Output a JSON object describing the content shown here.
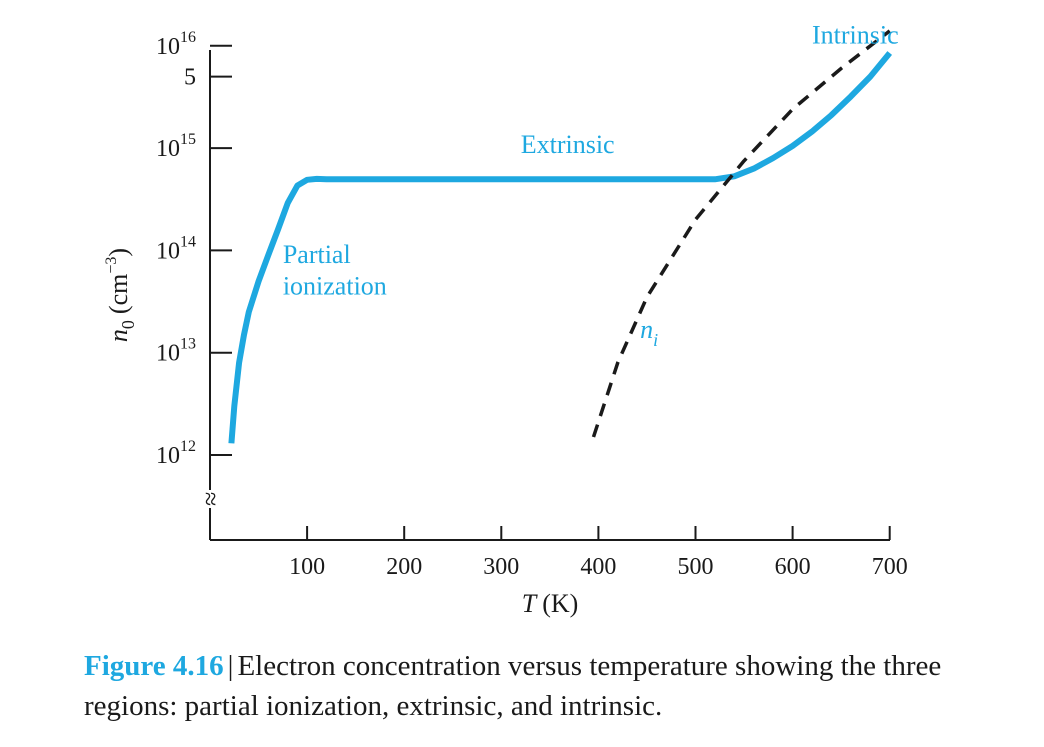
{
  "caption": {
    "figure_number": "Figure 4.16",
    "separator": "|",
    "text": "Electron concentration versus temperature showing the three regions: partial ionization, extrinsic, and intrinsic."
  },
  "colors": {
    "accent": "#1ea8e0",
    "ni_curve": "#1a1a1a",
    "axis": "#1a1a1a"
  },
  "chart_data": {
    "type": "line",
    "title": "",
    "xlabel": {
      "var": "T",
      "unit": "(K)"
    },
    "ylabel": {
      "var": "n",
      "sub": "0",
      "unit_pre": "(cm",
      "unit_exp": "−3",
      "unit_post": ")"
    },
    "x_scale": "linear",
    "y_scale": "log",
    "xlim": [
      0,
      700
    ],
    "ylim": [
      1000000000000.0,
      1e+16
    ],
    "x_ticks": [
      {
        "value": 100,
        "label": "100"
      },
      {
        "value": 200,
        "label": "200"
      },
      {
        "value": 300,
        "label": "300"
      },
      {
        "value": 400,
        "label": "400"
      },
      {
        "value": 500,
        "label": "500"
      },
      {
        "value": 600,
        "label": "600"
      },
      {
        "value": 700,
        "label": "700"
      }
    ],
    "y_ticks": [
      {
        "value": 1000000000000.0,
        "base": "10",
        "exp": "12"
      },
      {
        "value": 10000000000000.0,
        "base": "10",
        "exp": "13"
      },
      {
        "value": 100000000000000.0,
        "base": "10",
        "exp": "14"
      },
      {
        "value": 1000000000000000.0,
        "base": "10",
        "exp": "15"
      },
      {
        "value": 5000000000000000.0,
        "label": "5"
      },
      {
        "value": 1e+16,
        "base": "10",
        "exp": "16"
      }
    ],
    "axis_break": "≈",
    "grid": false,
    "series": [
      {
        "name": "",
        "style": "solid",
        "points": [
          [
            22,
            1300000000000.0
          ],
          [
            25,
            3000000000000.0
          ],
          [
            30,
            8000000000000.0
          ],
          [
            35,
            15000000000000.0
          ],
          [
            40,
            25000000000000.0
          ],
          [
            50,
            50000000000000.0
          ],
          [
            60,
            90000000000000.0
          ],
          [
            70,
            160000000000000.0
          ],
          [
            80,
            290000000000000.0
          ],
          [
            90,
            430000000000000.0
          ],
          [
            100,
            490000000000000.0
          ],
          [
            110,
            500000000000000.0
          ],
          [
            120,
            495000000000000.0
          ],
          [
            200,
            495000000000000.0
          ],
          [
            300,
            495000000000000.0
          ],
          [
            400,
            495000000000000.0
          ],
          [
            500,
            495000000000000.0
          ],
          [
            520,
            495000000000000.0
          ],
          [
            540,
            530000000000000.0
          ],
          [
            560,
            630000000000000.0
          ],
          [
            580,
            800000000000000.0
          ],
          [
            600,
            1050000000000000.0
          ],
          [
            620,
            1450000000000000.0
          ],
          [
            640,
            2100000000000000.0
          ],
          [
            660,
            3200000000000000.0
          ],
          [
            680,
            5000000000000000.0
          ],
          [
            700,
            8500000000000000.0
          ]
        ]
      },
      {
        "name": "n_i",
        "style": "dashed",
        "points": [
          [
            395,
            1500000000000.0
          ],
          [
            420,
            8000000000000.0
          ],
          [
            450,
            35000000000000.0
          ],
          [
            500,
            200000000000000.0
          ],
          [
            550,
            750000000000000.0
          ],
          [
            600,
            2400000000000000.0
          ],
          [
            650,
            6000000000000000.0
          ],
          [
            700,
            1.4e+16
          ]
        ]
      }
    ],
    "annotations": [
      {
        "text": "Partial",
        "x": 75,
        "y": 75000000000000.0,
        "color": "accent"
      },
      {
        "text": "ionization",
        "x": 75,
        "y": 37000000000000.0,
        "color": "accent"
      },
      {
        "text": "Extrinsic",
        "x": 320,
        "y": 900000000000000.0,
        "color": "accent"
      },
      {
        "text": "Intrinsic",
        "x": 620,
        "y": 1.05e+16,
        "color": "accent"
      },
      {
        "text": "n",
        "sub": "i",
        "x": 443,
        "y": 14000000000000.0,
        "color": "accent"
      }
    ]
  }
}
